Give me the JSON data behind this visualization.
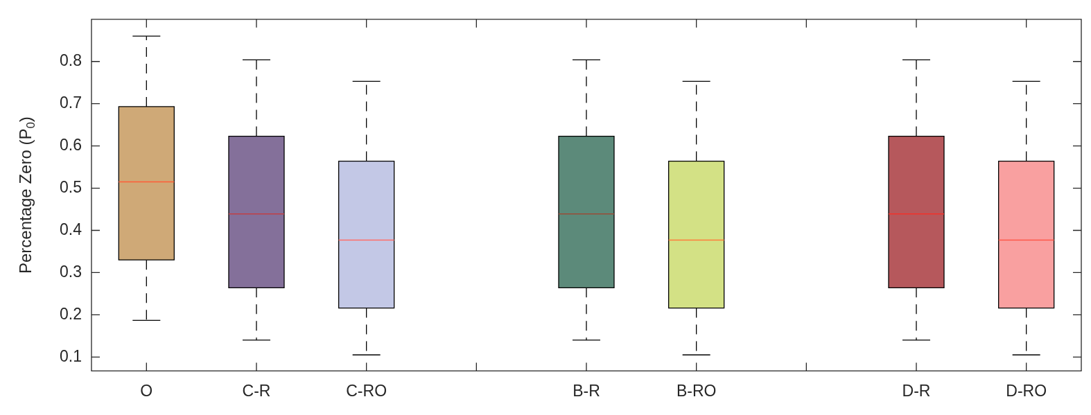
{
  "chart_data": {
    "type": "box",
    "ylabel": "Percentage Zero (P$_{0}$)",
    "categories": [
      "O",
      "C-R",
      "C-RO",
      null,
      "B-R",
      "B-RO",
      null,
      "D-R",
      "D-RO"
    ],
    "ylim": [
      0.067,
      0.9
    ],
    "yticks": [
      0.1,
      0.2,
      0.3,
      0.4,
      0.5,
      0.6,
      0.7,
      0.8
    ],
    "grid": false,
    "legend": false,
    "colors": [
      "#cfa977",
      "#84709a",
      "#c3c8e6",
      null,
      "#5c8a7a",
      "#d3e185",
      null,
      "#b6585c",
      "#f9a0a0"
    ],
    "boxes": [
      {
        "low": 0.187,
        "q1": 0.33,
        "median": 0.515,
        "q3": 0.693,
        "high": 0.86
      },
      {
        "low": 0.14,
        "q1": 0.264,
        "median": 0.439,
        "q3": 0.623,
        "high": 0.804
      },
      {
        "low": 0.105,
        "q1": 0.216,
        "median": 0.377,
        "q3": 0.564,
        "high": 0.753
      },
      null,
      {
        "low": 0.14,
        "q1": 0.264,
        "median": 0.439,
        "q3": 0.623,
        "high": 0.804
      },
      {
        "low": 0.105,
        "q1": 0.216,
        "median": 0.377,
        "q3": 0.564,
        "high": 0.753
      },
      null,
      {
        "low": 0.14,
        "q1": 0.264,
        "median": 0.439,
        "q3": 0.623,
        "high": 0.804
      },
      {
        "low": 0.105,
        "q1": 0.216,
        "median": 0.377,
        "q3": 0.564,
        "high": 0.753
      }
    ]
  }
}
